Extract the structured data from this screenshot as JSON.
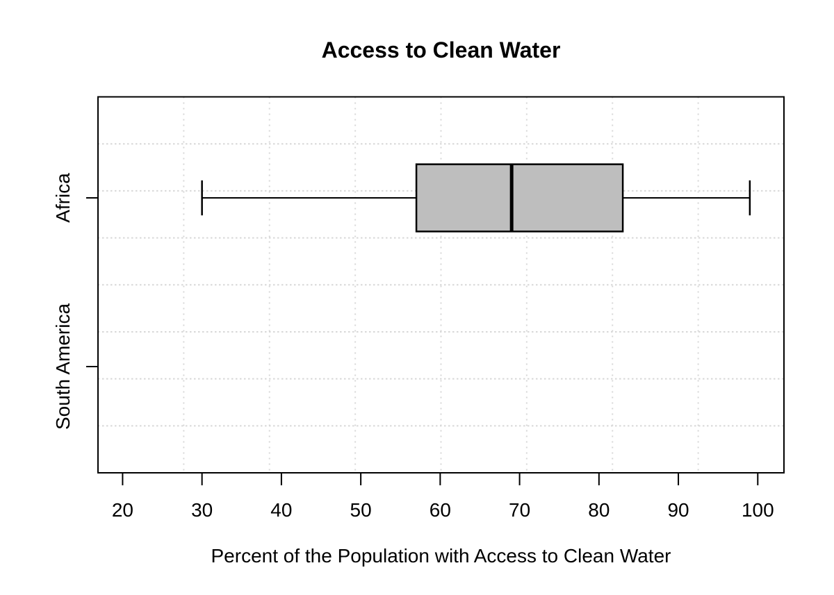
{
  "chart_data": {
    "type": "boxplot",
    "orientation": "horizontal",
    "title": "Access to Clean Water",
    "xlabel": "Percent of the Population with Access to Clean Water",
    "ylabel": "",
    "categories": [
      "Africa",
      "South America"
    ],
    "x_ticks": [
      20,
      30,
      40,
      50,
      60,
      70,
      80,
      90,
      100
    ],
    "xlim": [
      16.9,
      103.3
    ],
    "series": [
      {
        "name": "Africa",
        "whisker_low": 30,
        "q1": 57,
        "median": 69,
        "q3": 83,
        "whisker_high": 99,
        "outliers": []
      },
      {
        "name": "South America",
        "whisker_low": null,
        "q1": null,
        "median": null,
        "q3": null,
        "whisker_high": null,
        "outliers": [],
        "note": "no box drawn (no data shown)"
      }
    ],
    "grid": {
      "on": true,
      "nx": 8,
      "ny": 8,
      "line_style": "dotted"
    },
    "legend": {
      "shown": false
    },
    "colors": {
      "box_fill": "#BEBEBE",
      "box_border": "#000000",
      "median": "#000000",
      "whisker": "#000000",
      "grid": "#D7D7D7",
      "frame": "#000000",
      "background": "#FFFFFF",
      "text": "#000000"
    }
  }
}
